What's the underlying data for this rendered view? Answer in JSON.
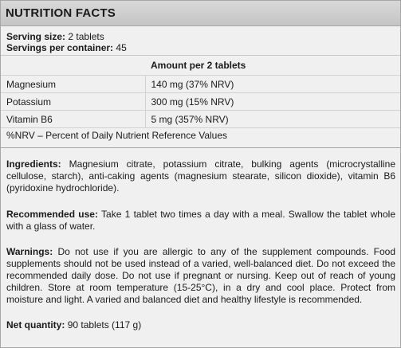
{
  "title": "NUTRITION FACTS",
  "serving": {
    "size_label": "Serving size:",
    "size_value": "2 tablets",
    "per_container_label": "Servings per container:",
    "per_container_value": "45"
  },
  "table": {
    "header": "Amount per 2 tablets",
    "rows": [
      {
        "name": "Magnesium",
        "amount": "140 mg (37% NRV)"
      },
      {
        "name": "Potassium",
        "amount": "300 mg (15% NRV)"
      },
      {
        "name": "Vitamin B6",
        "amount": "5 mg (357% NRV)"
      }
    ]
  },
  "nrv_note": "%NRV – Percent of Daily Nutrient Reference Values",
  "ingredients": {
    "label": "Ingredients:",
    "text": "Magnesium citrate, potassium citrate, bulking agents (microcrystalline cellulose, starch), anti-caking agents (magnesium stearate, silicon dioxide), vitamin B6 (pyridoxine hydrochloride)."
  },
  "recommended_use": {
    "label": "Recommended use:",
    "text": "Take 1 tablet two times a day with a meal. Swallow the tablet whole with a glass of water."
  },
  "warnings": {
    "label": "Warnings:",
    "text": "Do not use if you are allergic to any of the supplement compounds. Food supplements should not be used instead of a varied, well-balanced diet. Do not exceed the recommended daily dose. Do not use if pregnant or nursing. Keep out of reach of young children. Store at room temperature (15-25°C), in a dry and cool place. Protect from moisture and light. A varied and balanced diet and healthy lifestyle is recommended."
  },
  "net_quantity": {
    "label": "Net quantity:",
    "text": "90 tablets (117 g)"
  }
}
